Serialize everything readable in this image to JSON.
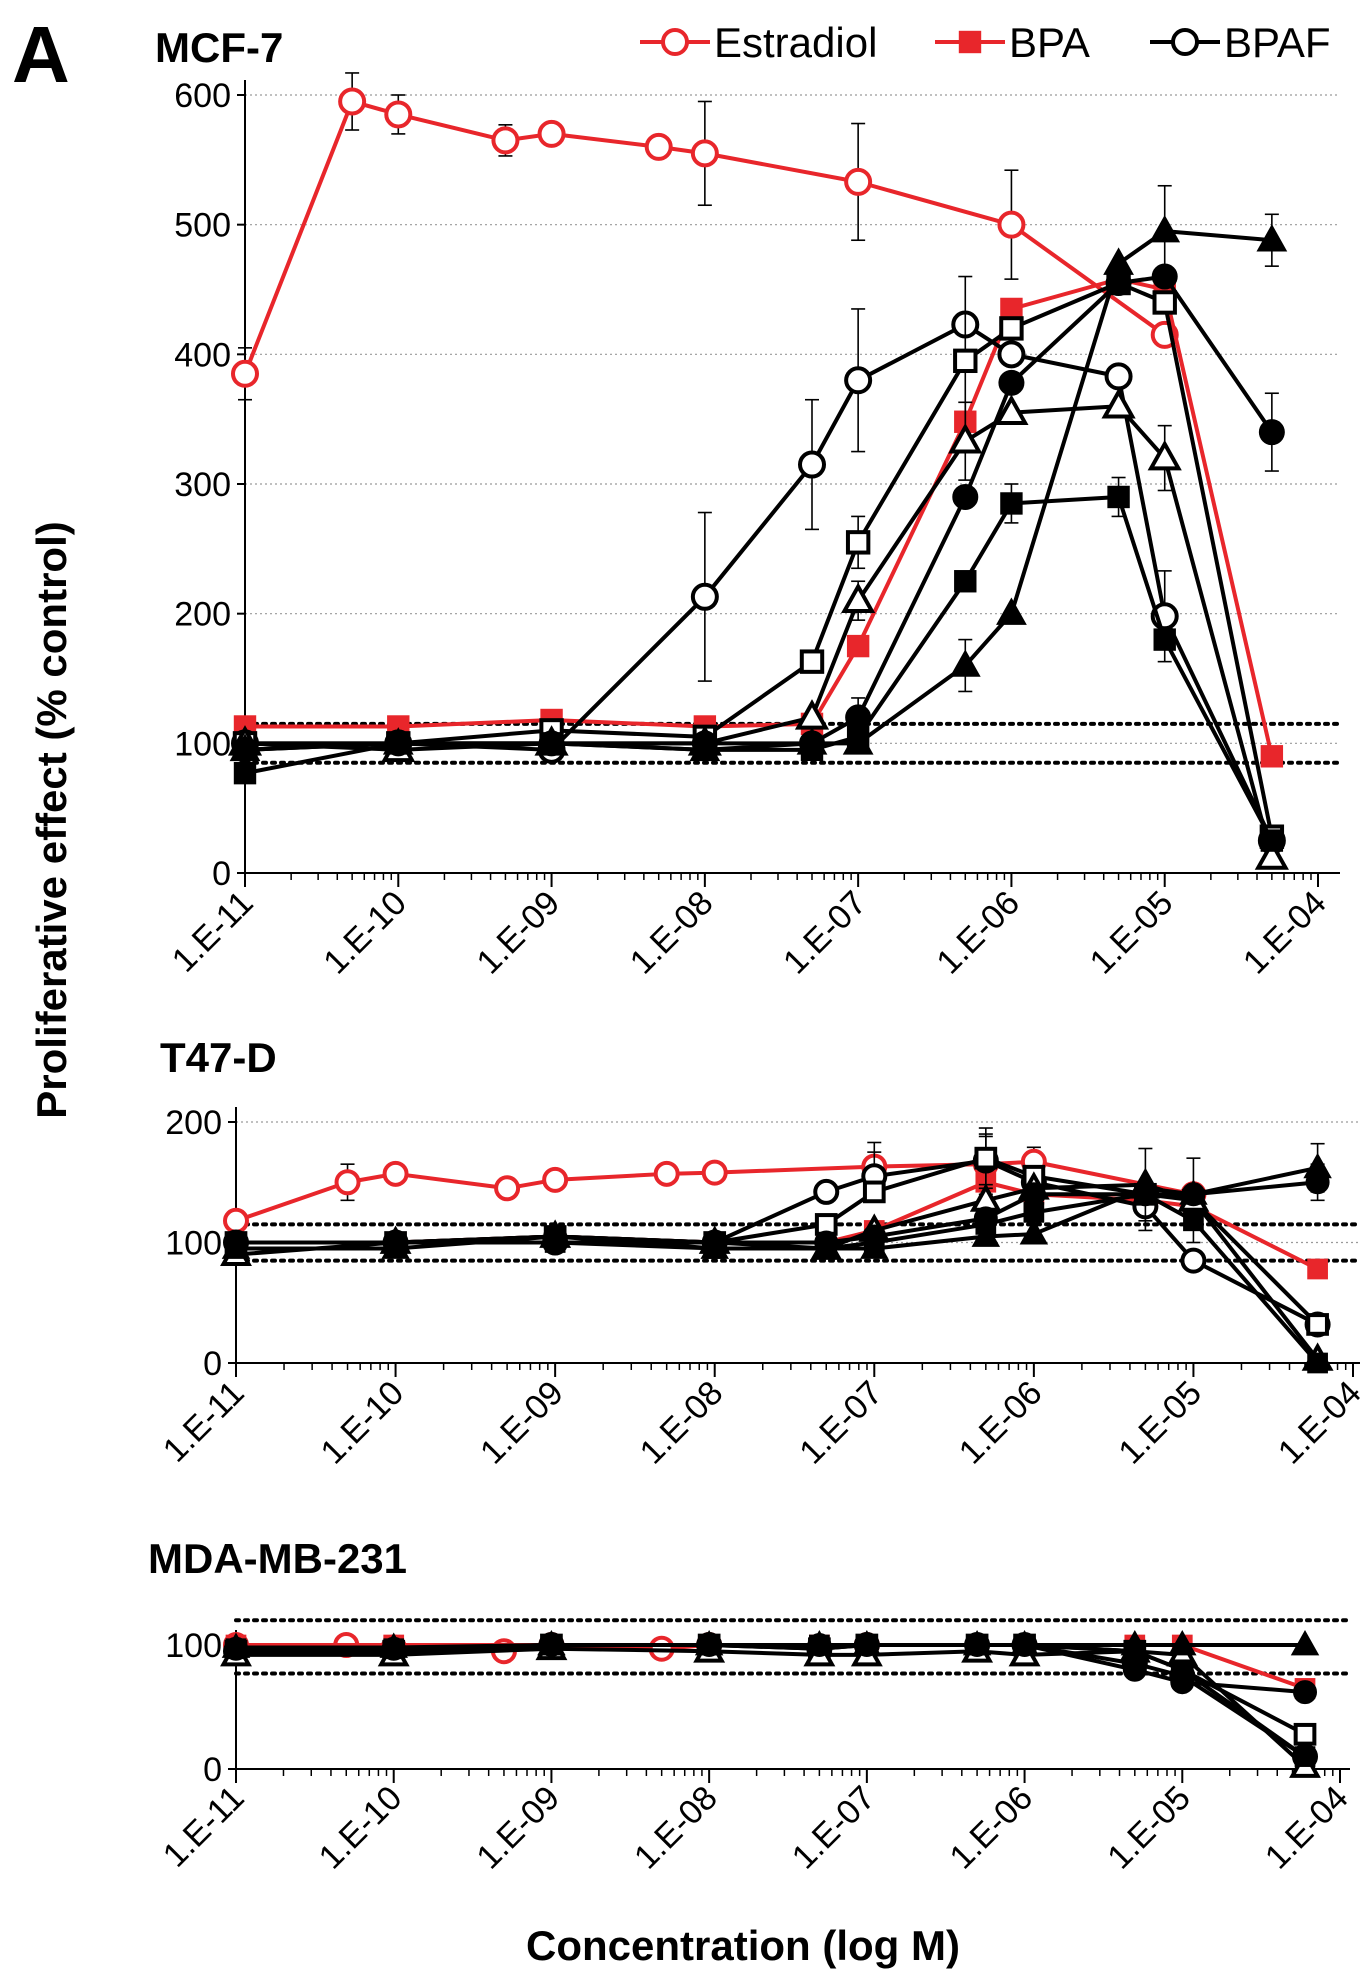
{
  "figure": {
    "panel_letter": "A",
    "y_axis_title": "Proliferative effect (% control)",
    "x_axis_title": "Concentration (log M)"
  },
  "legend": [
    {
      "label": "Estradiol",
      "color": "#e8262b",
      "marker": "open-circle",
      "line": "#e8262b"
    },
    {
      "label": "BPA",
      "color": "#e8262b",
      "marker": "filled-square",
      "line": "#e8262b"
    },
    {
      "label": "BPAF",
      "color": "#000000",
      "marker": "open-circle",
      "line": "#000000"
    }
  ],
  "chart_data": [
    {
      "type": "line",
      "title": "MCF-7",
      "xscale": "log",
      "xlim": [
        "1.E-11",
        "1.E-04"
      ],
      "ylim": [
        0,
        600
      ],
      "yticks": [
        0,
        100,
        200,
        300,
        400,
        500,
        600
      ],
      "xticklabels": [
        "1.E-11",
        "1.E-10",
        "1.E-09",
        "1.E-08",
        "1.E-07",
        "1.E-06",
        "1.E-05",
        "1.E-04"
      ],
      "grid": "horizontal dotted",
      "reference_lines": [
        115,
        85
      ],
      "series": [
        {
          "name": "Estradiol",
          "color": "#e8262b",
          "marker": "open-circle",
          "x": [
            1e-11,
            5e-11,
            1e-10,
            5e-10,
            1e-09,
            5e-09,
            1e-08,
            1e-07,
            1e-06,
            1e-05
          ],
          "y": [
            385,
            595,
            585,
            565,
            570,
            560,
            555,
            533,
            500,
            415
          ],
          "err": [
            20,
            22,
            15,
            12,
            0,
            0,
            40,
            45,
            42,
            0
          ]
        },
        {
          "name": "BPA",
          "color": "#e8262b",
          "marker": "filled-square",
          "x": [
            1e-11,
            1e-10,
            1e-09,
            1e-08,
            5e-08,
            1e-07,
            5e-07,
            1e-06,
            5e-06,
            1e-05,
            5e-05
          ],
          "y": [
            113,
            113,
            118,
            113,
            115,
            175,
            348,
            435,
            458,
            450,
            90
          ],
          "err": [
            0,
            0,
            0,
            0,
            0,
            0,
            0,
            0,
            0,
            0,
            0
          ]
        },
        {
          "name": "BPAF",
          "color": "#000000",
          "marker": "open-circle",
          "x": [
            1e-11,
            1e-10,
            1e-09,
            1e-08,
            5e-08,
            1e-07,
            5e-07,
            1e-06,
            5e-06,
            1e-05,
            5e-05
          ],
          "y": [
            100,
            100,
            95,
            213,
            315,
            380,
            423,
            400,
            383,
            198,
            25
          ],
          "err": [
            0,
            0,
            0,
            65,
            50,
            55,
            0,
            0,
            0,
            35,
            0
          ]
        },
        {
          "color": "#000000",
          "marker": "open-square",
          "x": [
            1e-11,
            1e-10,
            1e-09,
            1e-08,
            5e-08,
            1e-07,
            5e-07,
            1e-06,
            5e-06,
            1e-05,
            5e-05
          ],
          "y": [
            100,
            100,
            110,
            105,
            163,
            255,
            395,
            420,
            455,
            440,
            28
          ],
          "err": [
            0,
            0,
            0,
            0,
            0,
            20,
            65,
            0,
            0,
            0,
            0
          ]
        },
        {
          "color": "#000000",
          "marker": "open-triangle",
          "x": [
            1e-11,
            1e-10,
            1e-09,
            1e-08,
            5e-08,
            1e-07,
            5e-07,
            1e-06,
            5e-06,
            1e-05,
            5e-05
          ],
          "y": [
            100,
            95,
            100,
            100,
            120,
            210,
            333,
            355,
            360,
            320,
            12
          ],
          "err": [
            0,
            0,
            0,
            0,
            0,
            15,
            30,
            0,
            0,
            25,
            0
          ]
        },
        {
          "color": "#000000",
          "marker": "filled-circle",
          "x": [
            1e-11,
            1e-10,
            1e-09,
            1e-08,
            5e-08,
            1e-07,
            5e-07,
            1e-06,
            5e-06,
            1e-05,
            5e-05
          ],
          "y": [
            95,
            100,
            100,
            100,
            100,
            120,
            290,
            378,
            455,
            460,
            340
          ],
          "err": [
            0,
            0,
            0,
            0,
            0,
            15,
            0,
            0,
            0,
            0,
            30
          ]
        },
        {
          "color": "#000000",
          "marker": "filled-square",
          "x": [
            1e-11,
            1e-10,
            1e-09,
            1e-08,
            5e-08,
            1e-07,
            5e-07,
            1e-06,
            5e-06,
            1e-05,
            5e-05
          ],
          "y": [
            77,
            100,
            100,
            95,
            95,
            105,
            225,
            285,
            290,
            180,
            25
          ],
          "err": [
            0,
            0,
            0,
            0,
            0,
            0,
            0,
            15,
            15,
            0,
            0
          ]
        },
        {
          "color": "#000000",
          "marker": "filled-triangle",
          "x": [
            1e-11,
            1e-10,
            1e-09,
            1e-08,
            5e-08,
            1e-07,
            5e-07,
            1e-06,
            5e-06,
            1e-05,
            5e-05
          ],
          "y": [
            95,
            100,
            100,
            95,
            100,
            100,
            160,
            200,
            470,
            495,
            488
          ],
          "err": [
            0,
            0,
            0,
            0,
            0,
            0,
            20,
            0,
            0,
            35,
            20
          ]
        }
      ]
    },
    {
      "type": "line",
      "title": "T47-D",
      "xscale": "log",
      "xlim": [
        "1.E-11",
        "1.E-04"
      ],
      "ylim": [
        0,
        200
      ],
      "yticks": [
        0,
        100,
        200
      ],
      "xticklabels": [
        "1.E-11",
        "1.E-10",
        "1.E-09",
        "1.E-08",
        "1.E-07",
        "1.E-06",
        "1.E-05",
        "1.E-04"
      ],
      "grid": "horizontal dotted",
      "reference_lines": [
        115,
        85
      ],
      "series": [
        {
          "name": "Estradiol",
          "color": "#e8262b",
          "marker": "open-circle",
          "x": [
            1e-11,
            5e-11,
            1e-10,
            5e-10,
            1e-09,
            5e-09,
            1e-08,
            1e-07,
            5e-07,
            1e-06,
            1e-05
          ],
          "y": [
            118,
            150,
            157,
            145,
            152,
            157,
            158,
            163,
            165,
            167,
            140
          ],
          "err": [
            0,
            15,
            0,
            0,
            0,
            0,
            0,
            20,
            25,
            12,
            0
          ]
        },
        {
          "name": "BPA",
          "color": "#e8262b",
          "marker": "filled-square",
          "x": [
            1e-11,
            1e-10,
            1e-09,
            1e-08,
            5e-08,
            1e-07,
            5e-07,
            1e-06,
            5e-06,
            1e-05,
            6e-05
          ],
          "y": [
            100,
            100,
            105,
            100,
            100,
            110,
            150,
            140,
            135,
            130,
            78
          ],
          "err": [
            0,
            0,
            0,
            0,
            0,
            0,
            0,
            0,
            0,
            0,
            0
          ]
        },
        {
          "name": "BPAF",
          "color": "#000000",
          "marker": "open-circle",
          "x": [
            1e-11,
            1e-10,
            1e-09,
            1e-08,
            5e-08,
            1e-07,
            5e-07,
            1e-06,
            5e-06,
            1e-05,
            6e-05
          ],
          "y": [
            100,
            100,
            100,
            100,
            142,
            155,
            168,
            150,
            130,
            85,
            32
          ],
          "err": [
            0,
            0,
            0,
            0,
            0,
            20,
            20,
            0,
            20,
            0,
            0
          ]
        },
        {
          "color": "#000000",
          "marker": "open-square",
          "x": [
            1e-11,
            1e-10,
            1e-09,
            1e-08,
            5e-08,
            1e-07,
            5e-07,
            1e-06,
            5e-06,
            1e-05,
            6e-05
          ],
          "y": [
            100,
            100,
            105,
            100,
            115,
            142,
            170,
            155,
            140,
            135,
            32
          ],
          "err": [
            0,
            0,
            0,
            0,
            0,
            0,
            25,
            0,
            0,
            35,
            0
          ]
        },
        {
          "color": "#000000",
          "marker": "open-triangle",
          "x": [
            1e-11,
            1e-10,
            1e-09,
            1e-08,
            5e-08,
            1e-07,
            5e-07,
            1e-06,
            5e-06,
            1e-05,
            6e-05
          ],
          "y": [
            90,
            100,
            105,
            100,
            95,
            110,
            135,
            145,
            148,
            135,
            3
          ],
          "err": [
            0,
            0,
            0,
            0,
            0,
            0,
            0,
            0,
            30,
            0,
            0
          ]
        },
        {
          "color": "#000000",
          "marker": "filled-circle",
          "x": [
            1e-11,
            1e-10,
            1e-09,
            1e-08,
            5e-08,
            1e-07,
            5e-07,
            1e-06,
            5e-06,
            1e-05,
            6e-05
          ],
          "y": [
            100,
            100,
            105,
            100,
            100,
            105,
            120,
            140,
            140,
            140,
            150
          ],
          "err": [
            0,
            0,
            0,
            0,
            0,
            0,
            0,
            0,
            0,
            0,
            15
          ]
        },
        {
          "color": "#000000",
          "marker": "filled-square",
          "x": [
            1e-11,
            1e-10,
            1e-09,
            1e-08,
            5e-08,
            1e-07,
            5e-07,
            1e-06,
            5e-06,
            1e-05,
            6e-05
          ],
          "y": [
            100,
            100,
            100,
            95,
            95,
            100,
            115,
            125,
            140,
            118,
            0
          ],
          "err": [
            0,
            0,
            0,
            0,
            0,
            0,
            0,
            0,
            0,
            0,
            0
          ]
        },
        {
          "color": "#000000",
          "marker": "filled-triangle",
          "x": [
            1e-11,
            1e-10,
            1e-09,
            1e-08,
            5e-08,
            1e-07,
            5e-07,
            1e-06,
            5e-06,
            1e-05,
            6e-05
          ],
          "y": [
            95,
            95,
            105,
            95,
            95,
            95,
            105,
            107,
            145,
            140,
            162
          ],
          "err": [
            0,
            0,
            0,
            0,
            0,
            0,
            0,
            0,
            0,
            0,
            20
          ]
        }
      ]
    },
    {
      "type": "line",
      "title": "MDA-MB-231",
      "xscale": "log",
      "xlim": [
        "1.E-11",
        "1.E-04"
      ],
      "ylim": [
        0,
        100
      ],
      "yticks": [
        0,
        100
      ],
      "xticklabels": [
        "1.E-11",
        "1.E-10",
        "1.E-09",
        "1.E-08",
        "1.E-07",
        "1.E-06",
        "1.E-05",
        "1.E-04"
      ],
      "grid": "none",
      "reference_lines": [
        120,
        77
      ],
      "series": [
        {
          "name": "Estradiol",
          "color": "#e8262b",
          "marker": "open-circle",
          "x": [
            1e-11,
            5e-11,
            1e-10,
            5e-10,
            1e-09,
            5e-09,
            1e-08,
            1e-07
          ],
          "y": [
            100,
            100,
            98,
            95,
            100,
            97,
            100,
            100
          ],
          "err": [
            0,
            0,
            0,
            0,
            0,
            0,
            0,
            0
          ]
        },
        {
          "name": "BPA",
          "color": "#e8262b",
          "marker": "filled-square",
          "x": [
            1e-11,
            1e-10,
            1e-09,
            1e-08,
            5e-08,
            1e-07,
            5e-07,
            1e-06,
            5e-06,
            1e-05,
            6e-05
          ],
          "y": [
            100,
            100,
            100,
            100,
            100,
            100,
            100,
            100,
            100,
            100,
            65
          ],
          "err": [
            0,
            0,
            0,
            0,
            0,
            0,
            0,
            0,
            0,
            0,
            0
          ]
        },
        {
          "name": "BPAF",
          "color": "#000000",
          "marker": "open-circle",
          "x": [
            1e-11,
            1e-10,
            1e-09,
            1e-08,
            5e-08,
            1e-07,
            5e-07,
            1e-06,
            5e-06,
            1e-05,
            6e-05
          ],
          "y": [
            95,
            95,
            100,
            100,
            97,
            100,
            100,
            100,
            85,
            75,
            10
          ],
          "err": [
            0,
            0,
            0,
            0,
            0,
            0,
            0,
            0,
            0,
            0,
            0
          ]
        },
        {
          "color": "#000000",
          "marker": "open-square",
          "x": [
            1e-11,
            1e-10,
            1e-09,
            1e-08,
            5e-08,
            1e-07,
            5e-07,
            1e-06,
            5e-06,
            1e-05,
            6e-05
          ],
          "y": [
            95,
            95,
            100,
            100,
            97,
            100,
            100,
            100,
            95,
            80,
            28
          ],
          "err": [
            0,
            0,
            0,
            0,
            0,
            0,
            0,
            0,
            0,
            0,
            0
          ]
        },
        {
          "color": "#000000",
          "marker": "open-triangle",
          "x": [
            1e-11,
            1e-10,
            1e-09,
            1e-08,
            5e-08,
            1e-07,
            5e-07,
            1e-06,
            5e-06,
            1e-05,
            6e-05
          ],
          "y": [
            92,
            92,
            97,
            95,
            92,
            92,
            95,
            92,
            95,
            92,
            2
          ],
          "err": [
            0,
            0,
            0,
            0,
            0,
            0,
            0,
            0,
            0,
            0,
            0
          ]
        },
        {
          "color": "#000000",
          "marker": "filled-circle",
          "x": [
            1e-11,
            1e-10,
            1e-09,
            1e-08,
            5e-08,
            1e-07,
            5e-07,
            1e-06,
            5e-06,
            1e-05,
            6e-05
          ],
          "y": [
            97,
            97,
            100,
            100,
            100,
            100,
            100,
            100,
            80,
            70,
            62
          ],
          "err": [
            0,
            0,
            0,
            0,
            0,
            0,
            0,
            0,
            0,
            0,
            0
          ]
        },
        {
          "color": "#000000",
          "marker": "filled-square",
          "x": [
            1e-11,
            1e-10,
            1e-09,
            1e-08,
            5e-08,
            1e-07,
            5e-07,
            1e-06,
            5e-06,
            1e-05,
            6e-05
          ],
          "y": [
            97,
            97,
            100,
            100,
            100,
            100,
            100,
            100,
            95,
            80,
            10
          ],
          "err": [
            0,
            0,
            0,
            0,
            0,
            0,
            0,
            0,
            0,
            0,
            0
          ]
        },
        {
          "color": "#000000",
          "marker": "filled-triangle",
          "x": [
            1e-11,
            1e-10,
            1e-09,
            1e-08,
            5e-08,
            1e-07,
            5e-07,
            1e-06,
            5e-06,
            1e-05,
            6e-05
          ],
          "y": [
            98,
            98,
            100,
            100,
            100,
            100,
            100,
            100,
            100,
            100,
            100
          ],
          "err": [
            0,
            0,
            0,
            0,
            0,
            0,
            0,
            0,
            0,
            0,
            0
          ]
        }
      ]
    }
  ]
}
